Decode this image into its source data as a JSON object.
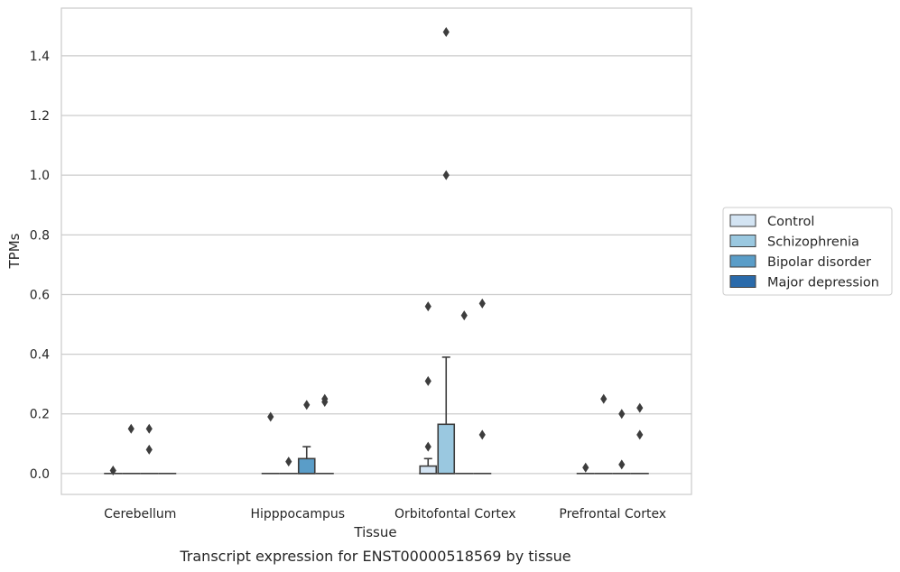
{
  "chart_data": {
    "type": "box",
    "title": "",
    "caption": "Transcript expression for ENST00000518569 by tissue",
    "xlabel": "Tissue",
    "ylabel": "TPMs",
    "ylim": [
      -0.07,
      1.56
    ],
    "yticks": [
      "0.0",
      "0.2",
      "0.4",
      "0.6",
      "0.8",
      "1.0",
      "1.2",
      "1.4"
    ],
    "grid": "horizontal",
    "legend_position": "right",
    "categories": [
      "Cerebellum",
      "Hipppocampus",
      "Orbitofontal Cortex",
      "Prefrontal Cortex"
    ],
    "series": [
      {
        "name": "Control",
        "color": "#d3e4f3",
        "boxes": [
          {
            "q1": 0,
            "median": 0,
            "q3": 0,
            "whisker_low": 0,
            "whisker_high": 0,
            "outliers": [
              0.01
            ]
          },
          {
            "q1": 0,
            "median": 0,
            "q3": 0,
            "whisker_low": 0,
            "whisker_high": 0,
            "outliers": [
              0.19
            ]
          },
          {
            "q1": 0,
            "median": 0,
            "q3": 0.025,
            "whisker_low": 0,
            "whisker_high": 0.05,
            "outliers": [
              0.09,
              0.31,
              0.56
            ]
          },
          {
            "q1": 0,
            "median": 0,
            "q3": 0,
            "whisker_low": 0,
            "whisker_high": 0,
            "outliers": [
              0.02
            ]
          }
        ]
      },
      {
        "name": "Schizophrenia",
        "color": "#9ac8e0",
        "boxes": [
          {
            "q1": 0,
            "median": 0,
            "q3": 0,
            "whisker_low": 0,
            "whisker_high": 0,
            "outliers": [
              0.15
            ]
          },
          {
            "q1": 0,
            "median": 0,
            "q3": 0,
            "whisker_low": 0,
            "whisker_high": 0,
            "outliers": [
              0.04
            ]
          },
          {
            "q1": 0,
            "median": 0,
            "q3": 0.165,
            "whisker_low": 0,
            "whisker_high": 0.39,
            "outliers": [
              1.0,
              1.48
            ]
          },
          {
            "q1": 0,
            "median": 0,
            "q3": 0,
            "whisker_low": 0,
            "whisker_high": 0,
            "outliers": [
              0.25
            ]
          }
        ]
      },
      {
        "name": "Bipolar disorder",
        "color": "#5a9dc8",
        "boxes": [
          {
            "q1": 0,
            "median": 0,
            "q3": 0,
            "whisker_low": 0,
            "whisker_high": 0,
            "outliers": [
              0.08,
              0.15
            ]
          },
          {
            "q1": 0,
            "median": 0,
            "q3": 0.05,
            "whisker_low": 0,
            "whisker_high": 0.09,
            "outliers": [
              0.23
            ]
          },
          {
            "q1": 0,
            "median": 0,
            "q3": 0,
            "whisker_low": 0,
            "whisker_high": 0,
            "outliers": [
              0.53
            ]
          },
          {
            "q1": 0,
            "median": 0,
            "q3": 0,
            "whisker_low": 0,
            "whisker_high": 0,
            "outliers": [
              0.03,
              0.2
            ]
          }
        ]
      },
      {
        "name": "Major depression",
        "color": "#2a6aaa",
        "boxes": [
          {
            "q1": 0,
            "median": 0,
            "q3": 0,
            "whisker_low": 0,
            "whisker_high": 0,
            "outliers": []
          },
          {
            "q1": 0,
            "median": 0,
            "q3": 0,
            "whisker_low": 0,
            "whisker_high": 0,
            "outliers": [
              0.24,
              0.25
            ]
          },
          {
            "q1": 0,
            "median": 0,
            "q3": 0,
            "whisker_low": 0,
            "whisker_high": 0,
            "outliers": [
              0.13,
              0.57
            ]
          },
          {
            "q1": 0,
            "median": 0,
            "q3": 0,
            "whisker_low": 0,
            "whisker_high": 0,
            "outliers": [
              0.13,
              0.22
            ]
          }
        ]
      }
    ]
  }
}
